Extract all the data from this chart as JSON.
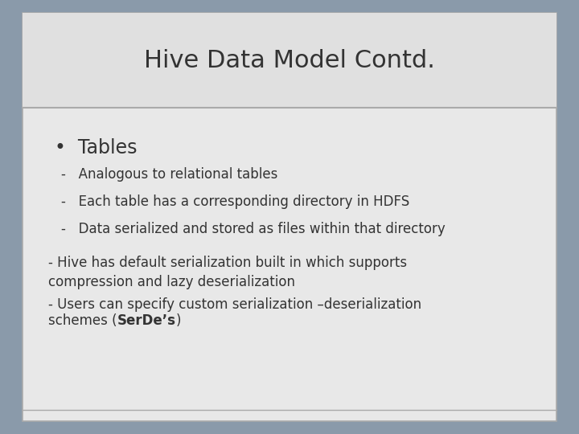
{
  "title": "Hive Data Model Contd.",
  "title_fontsize": 22,
  "title_color": "#333333",
  "bg_outer": "#8a9aaa",
  "bg_slide": "#e8e8e8",
  "bg_title": "#e0e0e0",
  "bg_body": "#e8e8e8",
  "border_color": "#aaaaaa",
  "bullet_text": "Tables",
  "bullet_fontsize": 17,
  "dash_items": [
    "Analogous to relational tables",
    "Each table has a corresponding directory in HDFS",
    "Data serialized and stored as files within that directory"
  ],
  "dash_fontsize": 12,
  "para1": "- Hive has default serialization built in which supports\ncompression and lazy deserialization",
  "para2_line1": "- Users can specify custom serialization –deserialization",
  "para2_line2_pre": "schemes (",
  "para2_line2_bold": "SerDe’s",
  "para2_line2_post": ")",
  "para_fontsize": 12,
  "text_color": "#333333"
}
